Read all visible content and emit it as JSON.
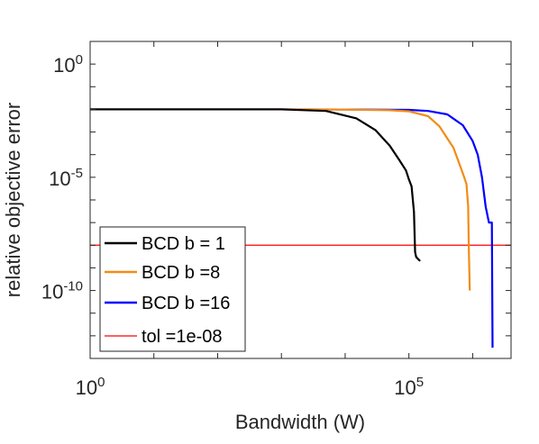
{
  "chart_data": {
    "type": "line",
    "title": "",
    "xlabel": "Bandwidth (W)",
    "ylabel": "relative objective error",
    "xscale": "log",
    "yscale": "log",
    "xlim": [
      1,
      4000000
    ],
    "ylim": [
      1e-13,
      10
    ],
    "x_ticks": [
      {
        "value": 1,
        "base": "10",
        "exp": "0"
      },
      {
        "value": 100000,
        "base": "10",
        "exp": "5"
      }
    ],
    "y_ticks": [
      {
        "value": 1,
        "base": "10",
        "exp": "0"
      },
      {
        "value": 1e-05,
        "base": "10",
        "exp": "-5"
      },
      {
        "value": 1e-10,
        "base": "10",
        "exp": "-10"
      }
    ],
    "grid": false,
    "legend_position": "bottom-left",
    "series": [
      {
        "name": "BCD b = 1",
        "color": "#000000",
        "x": [
          1,
          100,
          1000,
          5000,
          15000,
          30000,
          50000,
          70000,
          90000,
          100000,
          110000,
          120000,
          125000,
          130000,
          150000
        ],
        "y": [
          0.01,
          0.01,
          0.01,
          0.0085,
          0.004,
          0.0012,
          0.00025,
          6e-05,
          2e-05,
          8e-06,
          4e-06,
          3e-07,
          5e-09,
          3e-09,
          2e-09
        ]
      },
      {
        "name": "BCD b =8",
        "color": "#f28c17",
        "x": [
          1,
          100,
          1000,
          10000,
          50000,
          100000,
          200000,
          300000,
          500000,
          700000,
          800000,
          850000,
          870000,
          900000
        ],
        "y": [
          0.01,
          0.01,
          0.01,
          0.0098,
          0.0092,
          0.0082,
          0.005,
          0.0018,
          0.0002,
          1.5e-05,
          5e-06,
          5e-07,
          8e-09,
          1e-10
        ]
      },
      {
        "name": "BCD b =16",
        "color": "#0000ff",
        "x": [
          1,
          100,
          1000,
          10000,
          100000,
          200000,
          400000,
          700000,
          1000000,
          1200000,
          1400000,
          1600000,
          1800000,
          1900000,
          2000000,
          2050000
        ],
        "y": [
          0.01,
          0.01,
          0.01,
          0.0099,
          0.0095,
          0.0085,
          0.006,
          0.002,
          0.0004,
          0.0001,
          1e-05,
          5e-07,
          1e-07,
          1e-07,
          1e-07,
          3e-13
        ]
      }
    ],
    "reference_line": {
      "name": "tol =1e-08",
      "color": "#ff0000",
      "y": 1e-08
    },
    "legend_entries": [
      {
        "label": "BCD b = 1",
        "color": "#000000"
      },
      {
        "label": "BCD b =8",
        "color": "#f28c17"
      },
      {
        "label": "BCD b =16",
        "color": "#0000ff"
      },
      {
        "label": "tol =1e-08",
        "color": "#ff0000"
      }
    ]
  }
}
